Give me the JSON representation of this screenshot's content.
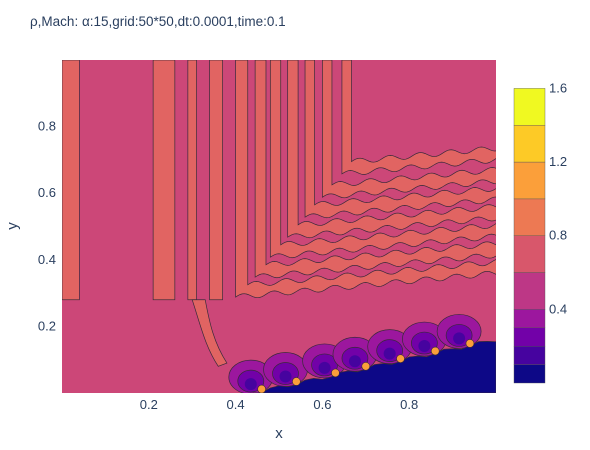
{
  "chart_data": {
    "type": "contour",
    "title": "ρ,Mach: α:15,grid:50*50,dt:0.0001,time:0.1",
    "xlabel": "x",
    "ylabel": "y",
    "xlim": [
      0,
      1
    ],
    "ylim": [
      0,
      1
    ],
    "xticks": [
      0.2,
      0.4,
      0.6,
      0.8
    ],
    "xtick_labels": [
      "0.2",
      "0.4",
      "0.6",
      "0.8"
    ],
    "yticks": [
      0.2,
      0.4,
      0.6,
      0.8
    ],
    "ytick_labels": [
      "0.2",
      "0.4",
      "0.6",
      "0.8"
    ],
    "colorbar": {
      "range": [
        0,
        1.7
      ],
      "ticks": [
        0.4,
        0.8,
        1.2,
        1.6
      ],
      "tick_labels": [
        "0.4",
        "0.8",
        "1.2",
        "1.6"
      ],
      "levels": [
        0.1,
        0.2,
        0.3,
        0.4,
        0.6,
        0.8,
        1.0,
        1.2,
        1.4,
        1.6
      ],
      "colors": [
        "#0d0887",
        "#46039f",
        "#7201a8",
        "#9c179e",
        "#bd3786",
        "#d8576b",
        "#ed7953",
        "#fb9f3a",
        "#fdca26",
        "#f0f921"
      ]
    },
    "regions": [
      {
        "level": "0.8-1.0",
        "color": "#cc4778"
      },
      {
        "level": "1.0-1.2",
        "color": "#e16462"
      },
      {
        "level": "0-0.1",
        "color": "#0d0887"
      }
    ],
    "vertical_bands_x": [
      [
        0.0,
        0.04
      ],
      [
        0.21,
        0.26
      ],
      [
        0.29,
        0.31
      ],
      [
        0.34,
        0.37
      ]
    ],
    "shock_wall": {
      "x": [
        0.44,
        1.0
      ],
      "y": [
        0.0,
        0.16
      ]
    },
    "hot_spots_x": [
      0.46,
      0.54,
      0.63,
      0.7,
      0.78,
      0.86,
      0.94
    ],
    "grid": false
  }
}
